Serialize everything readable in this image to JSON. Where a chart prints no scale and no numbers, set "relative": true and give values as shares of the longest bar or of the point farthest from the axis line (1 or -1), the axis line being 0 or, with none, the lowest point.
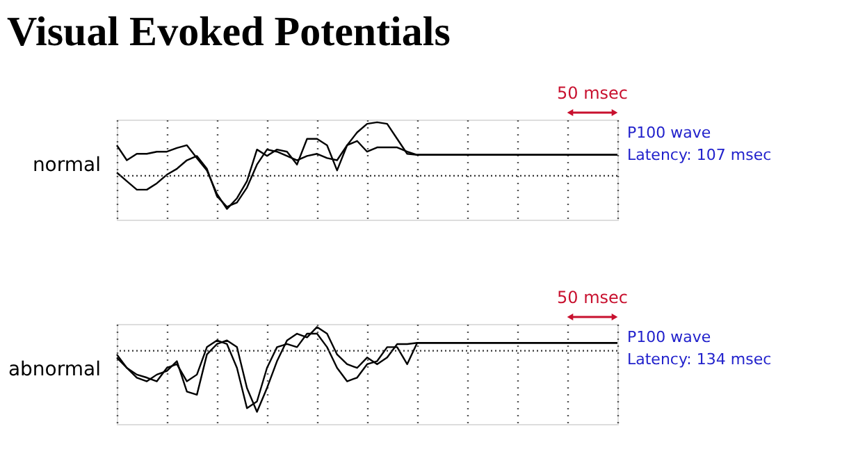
{
  "chart_data": [
    {
      "type": "line",
      "relative": true,
      "title": "Visual Evoked Potentials",
      "ylabel": "normal",
      "ref_lines": [
        {
          "axis": "y",
          "value": 0,
          "color": "#333333",
          "line_style": "dotted"
        }
      ],
      "grid": "x",
      "legend": false,
      "marker": "none",
      "line_style": "solid",
      "tick_labels": false,
      "categories": [
        null,
        null,
        null,
        null,
        null,
        null,
        null,
        null,
        null,
        null,
        null,
        null,
        null,
        null,
        null,
        null,
        null,
        null,
        null,
        null,
        null,
        null,
        null,
        null,
        null,
        null,
        null,
        null,
        null,
        null,
        null,
        null,
        null,
        null,
        null,
        null,
        null,
        null,
        null,
        null,
        null,
        null,
        null,
        null,
        null,
        null,
        null,
        null,
        null,
        null,
        null
      ],
      "annotations": [
        "50 msec",
        "P100 wave\nLatency: 107 msec"
      ],
      "series": [
        {
          "color": "#000000",
          "values": [
            0.57,
            0.29,
            0.41,
            0.41,
            0.45,
            0.45,
            0.52,
            0.57,
            0.33,
            0.1,
            -0.34,
            -0.62,
            -0.42,
            -0.1,
            0.49,
            0.37,
            0.49,
            0.45,
            0.21,
            0.69,
            0.69,
            0.57,
            0.1,
            0.57,
            0.81,
            0.97,
            1.0,
            0.97,
            0.69,
            0.41,
            0.39,
            0.39,
            0.39,
            0.39,
            0.39,
            0.39,
            0.39,
            0.39,
            0.39,
            0.39,
            0.39,
            0.39,
            0.39,
            0.39,
            0.39,
            0.39,
            0.39,
            0.39,
            0.39,
            0.39,
            0.39
          ]
        },
        {
          "color": "#000000",
          "values": [
            0.06,
            -0.1,
            -0.26,
            -0.26,
            -0.14,
            0.02,
            0.13,
            0.29,
            0.37,
            0.13,
            -0.38,
            -0.58,
            -0.5,
            -0.22,
            0.21,
            0.49,
            0.45,
            0.37,
            0.29,
            0.37,
            0.41,
            0.33,
            0.29,
            0.57,
            0.65,
            0.45,
            0.53,
            0.53,
            0.53,
            0.45,
            0.39,
            0.39,
            0.39,
            0.39,
            0.39,
            0.39,
            0.39,
            0.39,
            0.39,
            0.39,
            0.39,
            0.39,
            0.39,
            0.39,
            0.39,
            0.39,
            0.39,
            0.39,
            0.39,
            0.39,
            0.39
          ]
        }
      ]
    },
    {
      "type": "line",
      "relative": true,
      "ylabel": "abnormal",
      "ref_lines": [
        {
          "axis": "y",
          "value": 0,
          "color": "#333333",
          "line_style": "dotted"
        }
      ],
      "grid": "x",
      "legend": false,
      "marker": "none",
      "line_style": "solid",
      "tick_labels": false,
      "categories": [
        null,
        null,
        null,
        null,
        null,
        null,
        null,
        null,
        null,
        null,
        null,
        null,
        null,
        null,
        null,
        null,
        null,
        null,
        null,
        null,
        null,
        null,
        null,
        null,
        null,
        null,
        null,
        null,
        null,
        null,
        null,
        null,
        null,
        null,
        null,
        null,
        null,
        null,
        null,
        null,
        null,
        null,
        null,
        null,
        null,
        null,
        null,
        null,
        null,
        null,
        null
      ],
      "annotations": [
        "50 msec",
        "P100 wave\nLatency: 134 msec"
      ],
      "series": [
        {
          "color": "#000000",
          "values": [
            -0.06,
            -0.28,
            -0.39,
            -0.44,
            -0.5,
            -0.28,
            -0.22,
            -0.5,
            -0.39,
            0.06,
            0.17,
            0.11,
            -0.28,
            -0.94,
            -0.83,
            -0.28,
            0.06,
            0.11,
            0.06,
            0.28,
            0.28,
            0.06,
            -0.28,
            -0.5,
            -0.44,
            -0.22,
            -0.17,
            0.06,
            0.06,
            -0.22,
            0.13,
            0.13,
            0.13,
            0.13,
            0.13,
            0.13,
            0.13,
            0.13,
            0.13,
            0.13,
            0.13,
            0.13,
            0.13,
            0.13,
            0.13,
            0.13,
            0.13,
            0.13,
            0.13,
            0.13,
            0.13
          ]
        },
        {
          "color": "#000000",
          "values": [
            -0.11,
            -0.28,
            -0.44,
            -0.5,
            -0.39,
            -0.33,
            -0.17,
            -0.67,
            -0.72,
            -0.06,
            0.11,
            0.17,
            0.06,
            -0.61,
            -1.0,
            -0.61,
            -0.17,
            0.17,
            0.28,
            0.22,
            0.39,
            0.28,
            -0.06,
            -0.22,
            -0.28,
            -0.11,
            -0.22,
            -0.11,
            0.11,
            0.11,
            0.13,
            0.13,
            0.13,
            0.13,
            0.13,
            0.13,
            0.13,
            0.13,
            0.13,
            0.13,
            0.13,
            0.13,
            0.13,
            0.13,
            0.13,
            0.13,
            0.13,
            0.13,
            0.13,
            0.13,
            0.13
          ]
        }
      ]
    }
  ]
}
